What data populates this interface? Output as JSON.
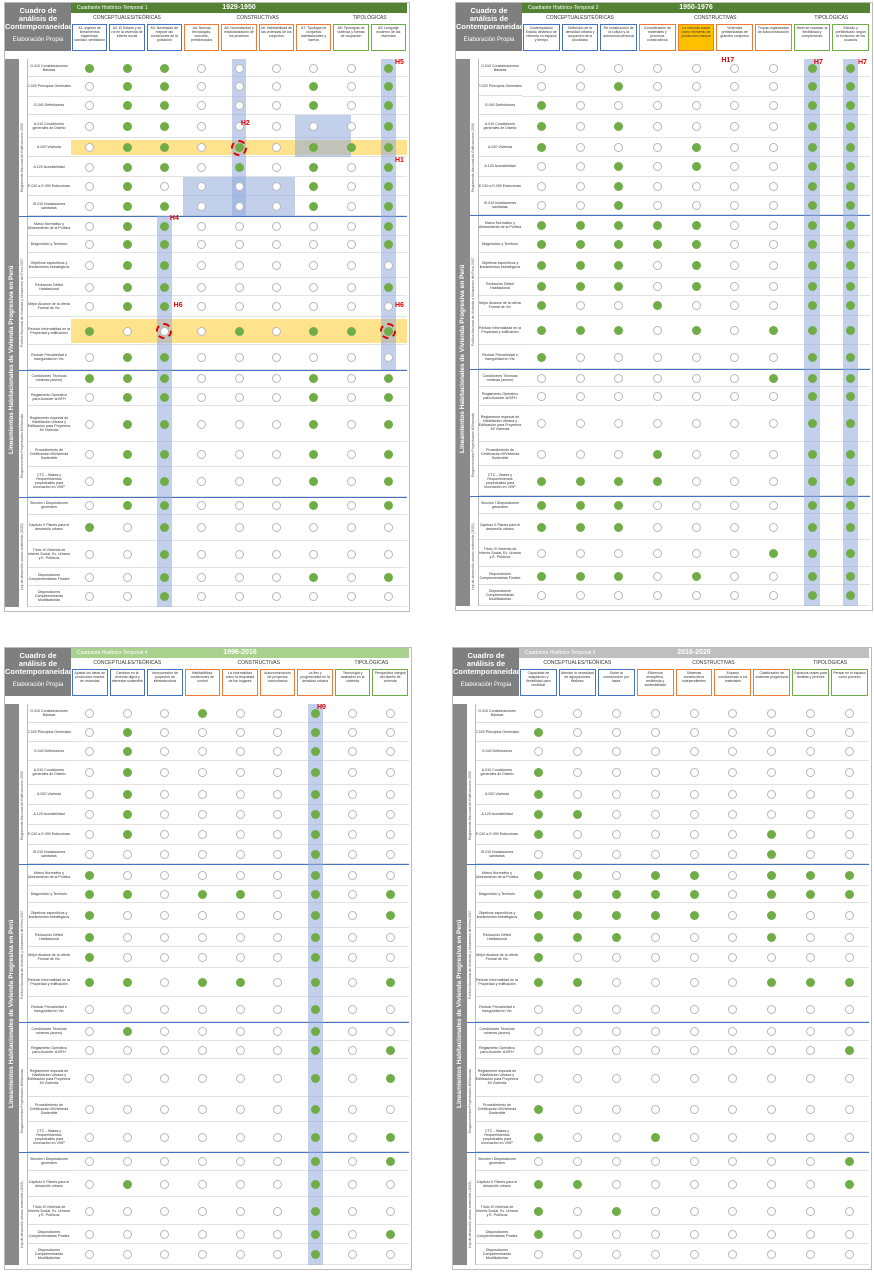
{
  "row_labels": [
    "G.010 Consideraciones Básicas",
    "G.020 Principios Generales",
    "G.040 Definiciones",
    "A.010 Condiciones generales de Diseño",
    "A.020 Vivienda",
    "A.120 Accesibilidad",
    "E.010 a E.090 Estructuras",
    "IS.010 Instalaciones sanitarias",
    "Marco Normativo y Alineamiento de la Política",
    "Diagnóstico y Territorio",
    "Objetivos específicos y lineamientos estratégicos",
    "Reducción Déficit Habitacional",
    "Mejor Alcance de la oferta Formal de Viv.",
    "Reducir Informalidad en la Propiedad y edificación",
    "Reducir Precariedad e Inseguridad en Viv.",
    "Condiciones Técnicas mínimas (anexo)",
    "Reglamento Operativo para Acceder al BFH",
    "Reglamento especial de Habilitación Urbana y Edificación para Proyectos MI Vivienda",
    "Procedimiento de Certificación MIVivienda Sostenible",
    "CTC – Bases y Requerimientos proyectuales para Innovación en VISP",
    "Sección I Disposiciones generales",
    "Capítulo II Planes para el desarrollo urbano",
    "Título III Vivienda de Interés Social, Ev. Urbana y E. Públicos",
    "Disposiciones Complementarias Finales",
    "Disposiciones Complementarias Modificatorias"
  ],
  "group_labels": [
    "Reglamento Nacional de Edificaciones 2006",
    "Política Nacional de Vivienda y Urbanismo del Perú 2027",
    "Requerimientos Proyectuales MIVivienda",
    "Ley de desarrollo urbano sostenible (2022)"
  ],
  "side_title": "Lineamientos Habitacionales de Vivienda Progresiva en Perú",
  "categories": {
    "conceptual": "CONCEPTUALES/TEÓRICAS",
    "constructive": "CONSTRUCTIVAS",
    "typological": "TIPOLÓGICAS"
  },
  "colors": {
    "dot_on": "#70ad47",
    "header_green": "#548235",
    "header_gray": "#7f7f7f",
    "highlight_blue": "#8faadc",
    "highlight_orange": "#ffc000",
    "label_red": "#e00000"
  },
  "panels": [
    {
      "id": "p1",
      "title": "Cuadro de análisis de Contemporaneidad",
      "subtitle": "Elaboración Propia",
      "band_label": "Cuadrante Histórico-Temporal 1",
      "period": "1929-1950",
      "columns": [
        "A1: ingreso de lineamientos higienistas, sanidad, ventilación",
        "A2: El Estado y su rol en la vivienda de interés social",
        "A3: Necesidad de mejorar las condiciones de la población",
        "A4: Nuevas tecnologías, concreto, prefabricados",
        "A5: Normatividad y estandarización de los procesos",
        "A6: Habitabilidad de las viviendas de los conjuntos",
        "A7: Tipología de conjuntos habitacionales y barrios",
        "A8: Tipologías de vivienda y formas de ocupación",
        "A9: Lenguaje moderno de las viviendas"
      ],
      "dots": [
        "111000001",
        "011000101",
        "011000101",
        "011000001",
        "011010111",
        "011010101",
        "010000101",
        "011000101",
        "011000001",
        "011000001",
        "011000000",
        "011000001",
        "011000000",
        "100010111",
        "011000000",
        "111000101",
        "011000101",
        "011000101",
        "011000101",
        "011000101",
        "011000101",
        "101000000",
        "001000000",
        "001000101",
        "001000000"
      ],
      "labels": [
        "H1",
        "H2",
        "H4",
        "H5",
        "H6",
        "H6"
      ]
    },
    {
      "id": "p2",
      "title": "Cuadro de análisis de Contemporaneidad",
      "subtitle": "Elaboración Propia",
      "band_label": "Cuadrante Histórico-Temporal 2",
      "period": "1950-1976",
      "columns": [
        "Contemplación Estado dinámico de vivienda en espacio y tiempo",
        "Definición de la densidad urbana y ocupación de la pluralidad",
        "Re construcción de la cultura y la autonomía personal",
        "Consideración de materiales y procesos constructivos",
        "La vivienda social como elemento de producción masiva",
        "Viviendas prefabricadas de grandes conjuntos",
        "Tropas organizadas de autoconstrucción",
        "Nivel de cuadras: la flexibilidad y complemento",
        "Estudio y prefabricado según la evolución de los usuarios"
      ],
      "dots": [
        "000000011",
        "001000011",
        "100000011",
        "101000011",
        "100010011",
        "001010011",
        "001000011",
        "001000011",
        "111110011",
        "111110011",
        "111010011",
        "111010011",
        "100100011",
        "111010111",
        "100000011",
        "000000111",
        "000000011",
        "000000011",
        "000100011",
        "111100011",
        "111000011",
        "111000011",
        "000000111",
        "111010011",
        "000000011"
      ],
      "labels": [
        "H17",
        "H7",
        "H7"
      ]
    },
    {
      "id": "p3",
      "title": "Cuadro de análisis de Contemporaneidad",
      "subtitle": "Elaboración Propia",
      "band_label": "Cuadrante Histórico-Temporal 4",
      "period": "1996-2016",
      "columns": [
        "Ajustar los ideas de producción masiva de viviendas",
        "Cambios en la vivienda digna y bienestar sostenible",
        "Incorporación de proyectos de infraestructura",
        "Habitabilidad, condiciones de confort",
        "La informalidad como la respuesta de los hogares",
        "Autoconstrucción de proyectos comunitarios",
        "La flex y progresividad en la densidad urbana",
        "Tecnología y acabados en la vivienda",
        "Perspectiva integral del diseño de vivienda"
      ],
      "dots": [
        "000100100",
        "010000100",
        "010000100",
        "010000100",
        "010000100",
        "010000100",
        "010000100",
        "000000100",
        "100000100",
        "110110101",
        "100000101",
        "100000100",
        "100000100",
        "110110101",
        "000000100",
        "010000100",
        "000000101",
        "000000101",
        "000000100",
        "000000101",
        "000000101",
        "010000100",
        "000000100",
        "000000101",
        "000000100"
      ],
      "labels": [
        "H9"
      ]
    },
    {
      "id": "p4",
      "title": "Cuadro de análisis de Contemporaneidad",
      "subtitle": "Elaboración Propia",
      "band_label": "Cuadrante Histórico-Temporal 5",
      "period": "2016-2020",
      "columns": [
        "Capacidad de adaptación y flexibilidad para modificar",
        "Atender la necesidad de agrupaciones flexibles",
        "Sobre la construcción por fases",
        "Eficiencia energética, resiliencia y sostenibilidad",
        "Sistemas constructivos independientes",
        "Espacio condicionado a los materiales",
        "Clasificación de sistemas progresivos",
        "Espacios reales para familias y jóvenes",
        "Pensar en el espacio como proceso"
      ],
      "dots": [
        "000000000",
        "100000000",
        "000000000",
        "100000000",
        "100000000",
        "110000000",
        "100000100",
        "000000100",
        "110110111",
        "111110111",
        "111110100",
        "111000100",
        "100000000",
        "110000111",
        "000000000",
        "000000000",
        "000000001",
        "000000000",
        "100000000",
        "100100000",
        "000000001",
        "110000001",
        "101000000",
        "100000000",
        "000000000"
      ],
      "labels": []
    }
  ]
}
